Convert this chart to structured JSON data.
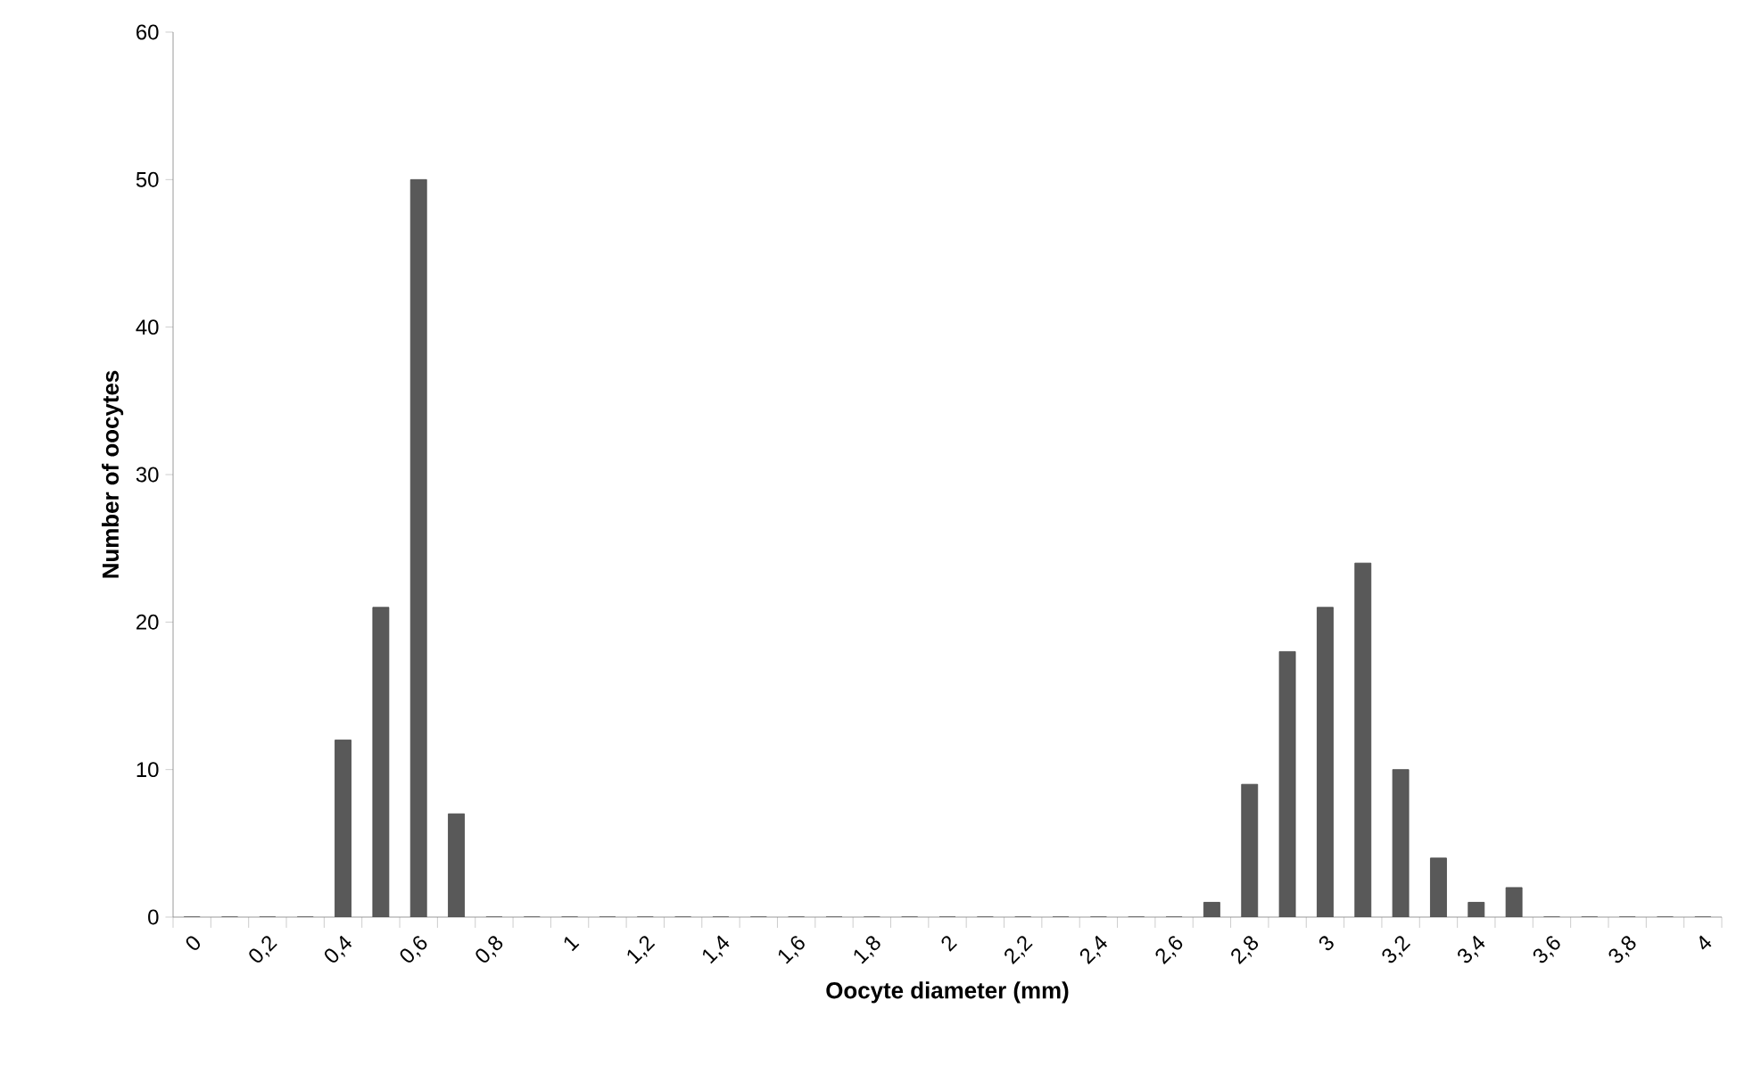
{
  "chart_data": {
    "type": "bar",
    "xlabel": "Oocyte diameter (mm)",
    "ylabel": "Number of oocytes",
    "categories": [
      "0",
      null,
      "0,2",
      null,
      "0,4",
      null,
      "0,6",
      null,
      "0,8",
      null,
      "1",
      null,
      "1,2",
      null,
      "1,4",
      null,
      "1,6",
      null,
      "1,8",
      null,
      "2",
      null,
      "2,2",
      null,
      "2,4",
      null,
      "2,6",
      null,
      "2,8",
      null,
      "3",
      null,
      "3,2",
      null,
      "3,4",
      null,
      "3,6",
      null,
      "3,8",
      null,
      "4"
    ],
    "values": [
      0,
      0,
      0,
      0,
      12,
      21,
      50,
      7,
      0,
      0,
      0,
      0,
      0,
      0,
      0,
      0,
      0,
      0,
      0,
      0,
      0,
      0,
      0,
      0,
      0,
      0,
      0,
      1,
      9,
      18,
      21,
      24,
      10,
      4,
      1,
      2,
      0,
      0,
      0,
      0,
      0
    ],
    "color": "#595959",
    "ylim": [
      0,
      60
    ],
    "yticks": [
      0,
      10,
      20,
      30,
      40,
      50,
      60
    ],
    "grid": false
  }
}
